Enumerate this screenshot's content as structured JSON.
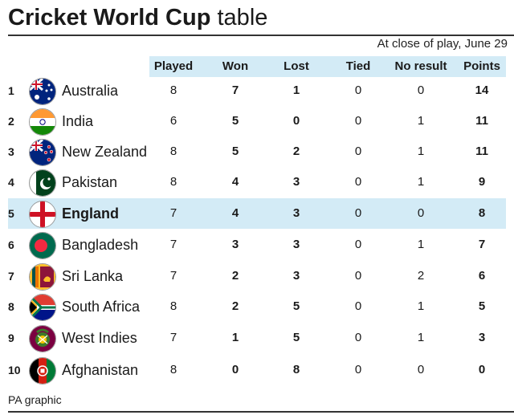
{
  "title": {
    "bold": "Cricket World Cup",
    "normal": "table"
  },
  "subtitle": "At close of play, June 29",
  "columns": [
    "Played",
    "Won",
    "Lost",
    "Tied",
    "No result",
    "Points"
  ],
  "highlight_color": "#d3ebf6",
  "rows": [
    {
      "rank": "1",
      "team": "Australia",
      "flag": "australia-flag-icon",
      "played": "8",
      "won": "7",
      "lost": "1",
      "tied": "0",
      "no_result": "0",
      "points": "14"
    },
    {
      "rank": "2",
      "team": "India",
      "flag": "india-flag-icon",
      "played": "6",
      "won": "5",
      "lost": "0",
      "tied": "0",
      "no_result": "1",
      "points": "11"
    },
    {
      "rank": "3",
      "team": "New Zealand",
      "flag": "new-zealand-flag-icon",
      "played": "8",
      "won": "5",
      "lost": "2",
      "tied": "0",
      "no_result": "1",
      "points": "11"
    },
    {
      "rank": "4",
      "team": "Pakistan",
      "flag": "pakistan-flag-icon",
      "played": "8",
      "won": "4",
      "lost": "3",
      "tied": "0",
      "no_result": "1",
      "points": "9"
    },
    {
      "rank": "5",
      "team": "England",
      "flag": "england-flag-icon",
      "played": "7",
      "won": "4",
      "lost": "3",
      "tied": "0",
      "no_result": "0",
      "points": "8"
    },
    {
      "rank": "6",
      "team": "Bangladesh",
      "flag": "bangladesh-flag-icon",
      "played": "7",
      "won": "3",
      "lost": "3",
      "tied": "0",
      "no_result": "1",
      "points": "7"
    },
    {
      "rank": "7",
      "team": "Sri Lanka",
      "flag": "sri-lanka-flag-icon",
      "played": "7",
      "won": "2",
      "lost": "3",
      "tied": "0",
      "no_result": "2",
      "points": "6"
    },
    {
      "rank": "8",
      "team": "South Africa",
      "flag": "south-africa-flag-icon",
      "played": "8",
      "won": "2",
      "lost": "5",
      "tied": "0",
      "no_result": "1",
      "points": "5"
    },
    {
      "rank": "9",
      "team": "West Indies",
      "flag": "west-indies-flag-icon",
      "played": "7",
      "won": "1",
      "lost": "5",
      "tied": "0",
      "no_result": "1",
      "points": "3"
    },
    {
      "rank": "10",
      "team": "Afghanistan",
      "flag": "afghanistan-flag-icon",
      "played": "8",
      "won": "0",
      "lost": "8",
      "tied": "0",
      "no_result": "0",
      "points": "0"
    }
  ],
  "footer": "PA graphic"
}
